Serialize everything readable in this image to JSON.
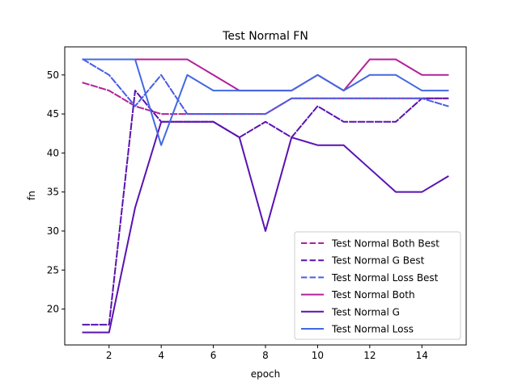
{
  "chart_data": {
    "type": "line",
    "title": "Test Normal FN",
    "xlabel": "epoch",
    "ylabel": "fn",
    "xlim": [
      0.3,
      15.7
    ],
    "ylim": [
      15.4,
      53.6
    ],
    "xticks": [
      2,
      4,
      6,
      8,
      10,
      12,
      14
    ],
    "yticks": [
      20,
      25,
      30,
      35,
      40,
      45,
      50
    ],
    "grid": false,
    "legend_position": "lower-right",
    "x": [
      1,
      2,
      3,
      4,
      5,
      6,
      7,
      8,
      9,
      10,
      11,
      12,
      13,
      14,
      15
    ],
    "series": [
      {
        "name": "Test Normal Both Best",
        "style": "dashed",
        "color": "#b2209a",
        "values": [
          49,
          48,
          46,
          45,
          45,
          45,
          45,
          45,
          47,
          47,
          47,
          47,
          47,
          47,
          47
        ]
      },
      {
        "name": "Test Normal G Best",
        "style": "dashed",
        "color": "#5a12b0",
        "values": [
          18,
          18,
          48,
          44,
          44,
          44,
          42,
          44,
          42,
          46,
          44,
          44,
          44,
          47,
          47
        ]
      },
      {
        "name": "Test Normal Loss Best",
        "style": "dashed",
        "color": "#4a5ce6",
        "values": [
          52,
          50,
          46,
          50,
          45,
          45,
          45,
          45,
          47,
          47,
          47,
          47,
          47,
          47,
          46
        ]
      },
      {
        "name": "Test Normal Both",
        "style": "solid",
        "color": "#b2209a",
        "values": [
          52,
          52,
          52,
          52,
          52,
          50,
          48,
          48,
          48,
          50,
          48,
          52,
          52,
          50,
          50
        ]
      },
      {
        "name": "Test Normal G",
        "style": "solid",
        "color": "#5a12b0",
        "values": [
          17,
          17,
          33,
          44,
          44,
          44,
          42,
          30,
          42,
          41,
          41,
          38,
          35,
          35,
          37
        ]
      },
      {
        "name": "Test Normal Loss",
        "style": "solid",
        "color": "#4169e1",
        "values": [
          52,
          52,
          52,
          41,
          50,
          48,
          48,
          48,
          48,
          50,
          48,
          50,
          50,
          48,
          48
        ]
      }
    ]
  }
}
